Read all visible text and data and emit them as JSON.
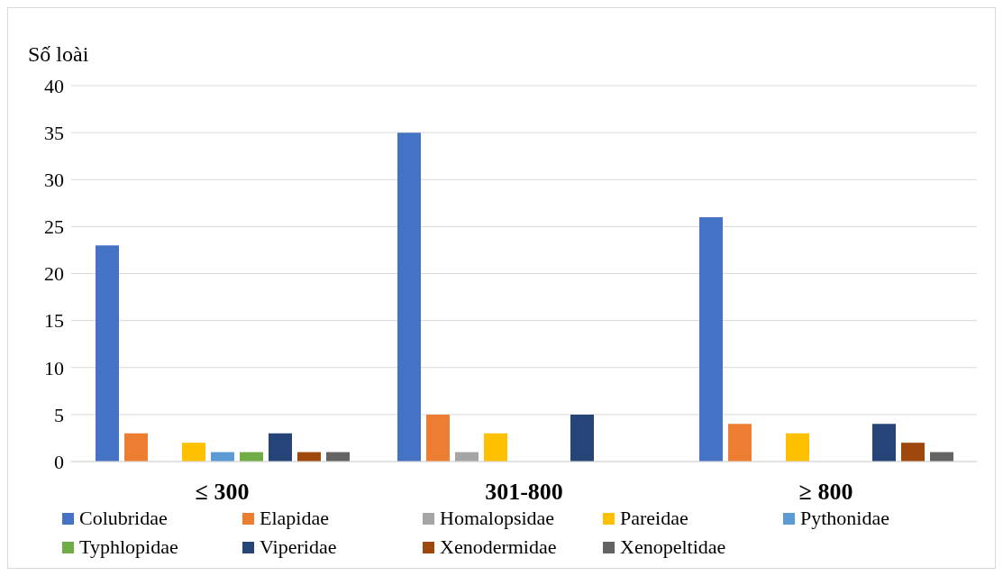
{
  "chart_data": {
    "type": "bar",
    "ylabel": "Số loài",
    "categories": [
      "≤ 300",
      "301-800",
      "≥ 800"
    ],
    "series": [
      {
        "name": "Colubridae",
        "color": "#4472c4",
        "values": [
          23,
          35,
          26
        ]
      },
      {
        "name": "Elapidae",
        "color": "#ed7d31",
        "values": [
          3,
          5,
          4
        ]
      },
      {
        "name": "Homalopsidae",
        "color": "#a5a5a5",
        "values": [
          0,
          1,
          0
        ]
      },
      {
        "name": "Pareidae",
        "color": "#ffc000",
        "values": [
          2,
          3,
          3
        ]
      },
      {
        "name": "Pythonidae",
        "color": "#5b9bd5",
        "values": [
          1,
          0,
          0
        ]
      },
      {
        "name": "Typhlopidae",
        "color": "#70ad47",
        "values": [
          1,
          0,
          0
        ]
      },
      {
        "name": "Viperidae",
        "color": "#264478",
        "values": [
          3,
          5,
          4
        ]
      },
      {
        "name": "Xenodermidae",
        "color": "#9e480e",
        "values": [
          1,
          0,
          2
        ]
      },
      {
        "name": "Xenopeltidae",
        "color": "#636363",
        "values": [
          1,
          0,
          1
        ]
      }
    ],
    "ylim": [
      0,
      40
    ],
    "yticks": [
      0,
      5,
      10,
      15,
      20,
      25,
      30,
      35,
      40
    ],
    "grid": "y",
    "legend": "bottom"
  }
}
